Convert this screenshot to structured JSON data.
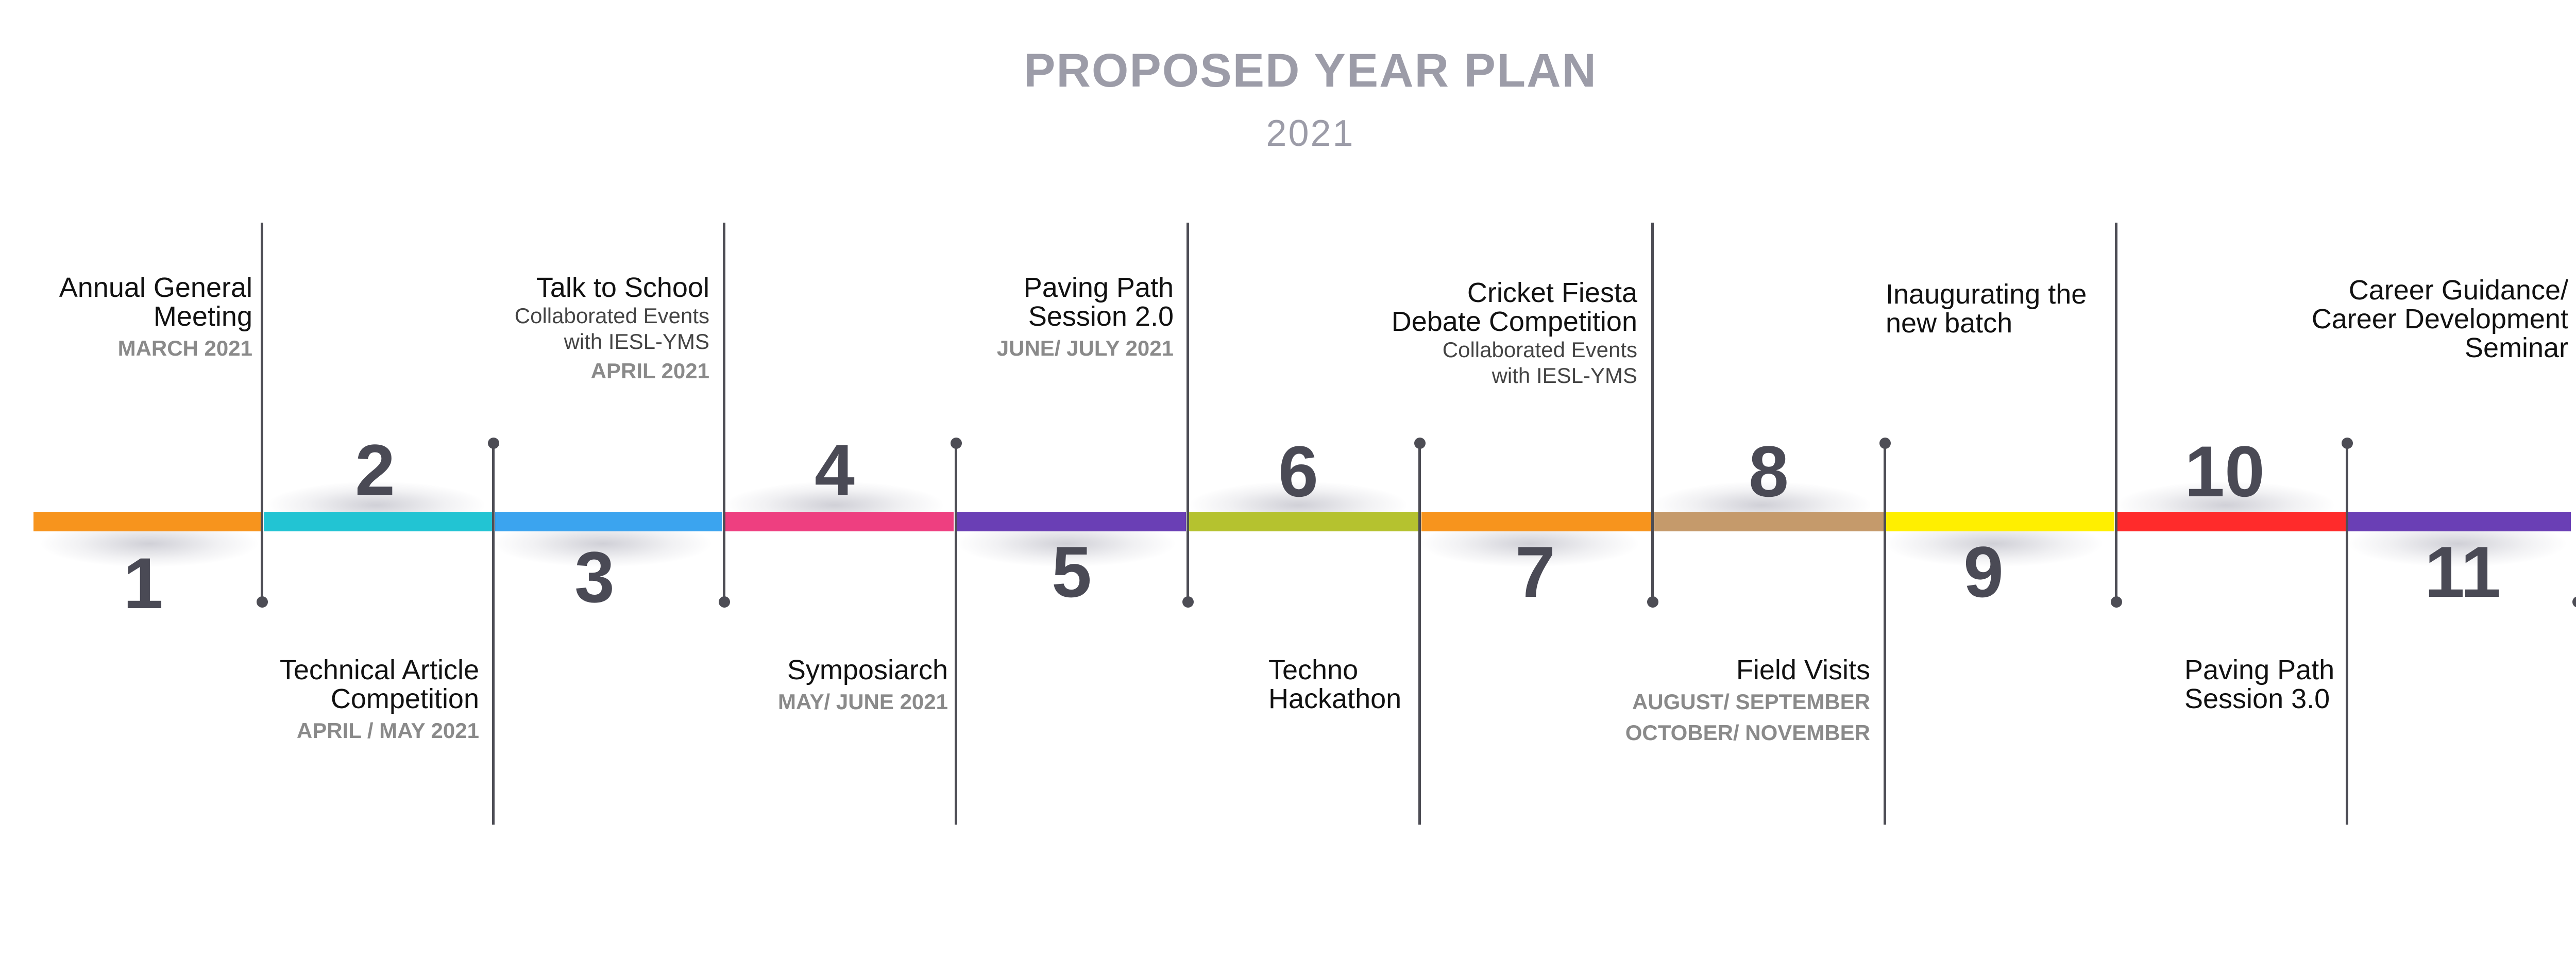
{
  "header": {
    "title": "PROPOSED YEAR PLAN",
    "year": "2021"
  },
  "colors": {
    "seg1": "#f7941d",
    "seg2": "#22c4d3",
    "seg3": "#3ba4ef",
    "seg4": "#ee3f80",
    "seg5": "#6a3fb5",
    "seg6": "#b5c22f",
    "seg7": "#f7941d",
    "seg8": "#c59a6b",
    "seg9": "#ffef00",
    "seg10": "#ff2b2b",
    "seg11": "#6a3fb5"
  },
  "milestones": [
    {
      "number": "1",
      "title_lines": [
        "Annual General",
        "Meeting"
      ],
      "date_lines": [
        "MARCH 2021"
      ],
      "note_lines": []
    },
    {
      "number": "2",
      "title_lines": [
        "Technical Article",
        "Competition"
      ],
      "date_lines": [
        "APRIL / MAY 2021"
      ],
      "note_lines": []
    },
    {
      "number": "3",
      "title_lines": [
        "Talk to School"
      ],
      "note_lines": [
        "Collaborated Events",
        "with IESL-YMS"
      ],
      "date_lines": [
        "APRIL 2021"
      ]
    },
    {
      "number": "4",
      "title_lines": [
        "Symposiarch"
      ],
      "date_lines": [
        "MAY/ JUNE 2021"
      ],
      "note_lines": []
    },
    {
      "number": "5",
      "title_lines": [
        "Paving Path",
        "Session 2.0"
      ],
      "date_lines": [
        "JUNE/ JULY 2021"
      ],
      "note_lines": []
    },
    {
      "number": "6",
      "title_lines": [
        "Techno",
        "Hackathon"
      ],
      "date_lines": [],
      "note_lines": []
    },
    {
      "number": "7",
      "title_lines": [
        "Cricket Fiesta",
        "Debate Competition"
      ],
      "note_lines": [
        "Collaborated Events",
        "with IESL-YMS"
      ],
      "date_lines": []
    },
    {
      "number": "8",
      "title_lines": [
        "Field Visits"
      ],
      "date_lines": [
        "AUGUST/ SEPTEMBER",
        "OCTOBER/ NOVEMBER"
      ],
      "note_lines": []
    },
    {
      "number": "9",
      "title_lines": [
        "Inaugurating the",
        "new batch"
      ],
      "date_lines": [],
      "note_lines": []
    },
    {
      "number": "10",
      "title_lines": [
        "Paving Path",
        "Session 3.0"
      ],
      "date_lines": [],
      "note_lines": []
    },
    {
      "number": "11",
      "title_lines": [
        "Career Guidance/",
        "Career Development",
        "Seminar"
      ],
      "date_lines": [],
      "note_lines": []
    }
  ]
}
